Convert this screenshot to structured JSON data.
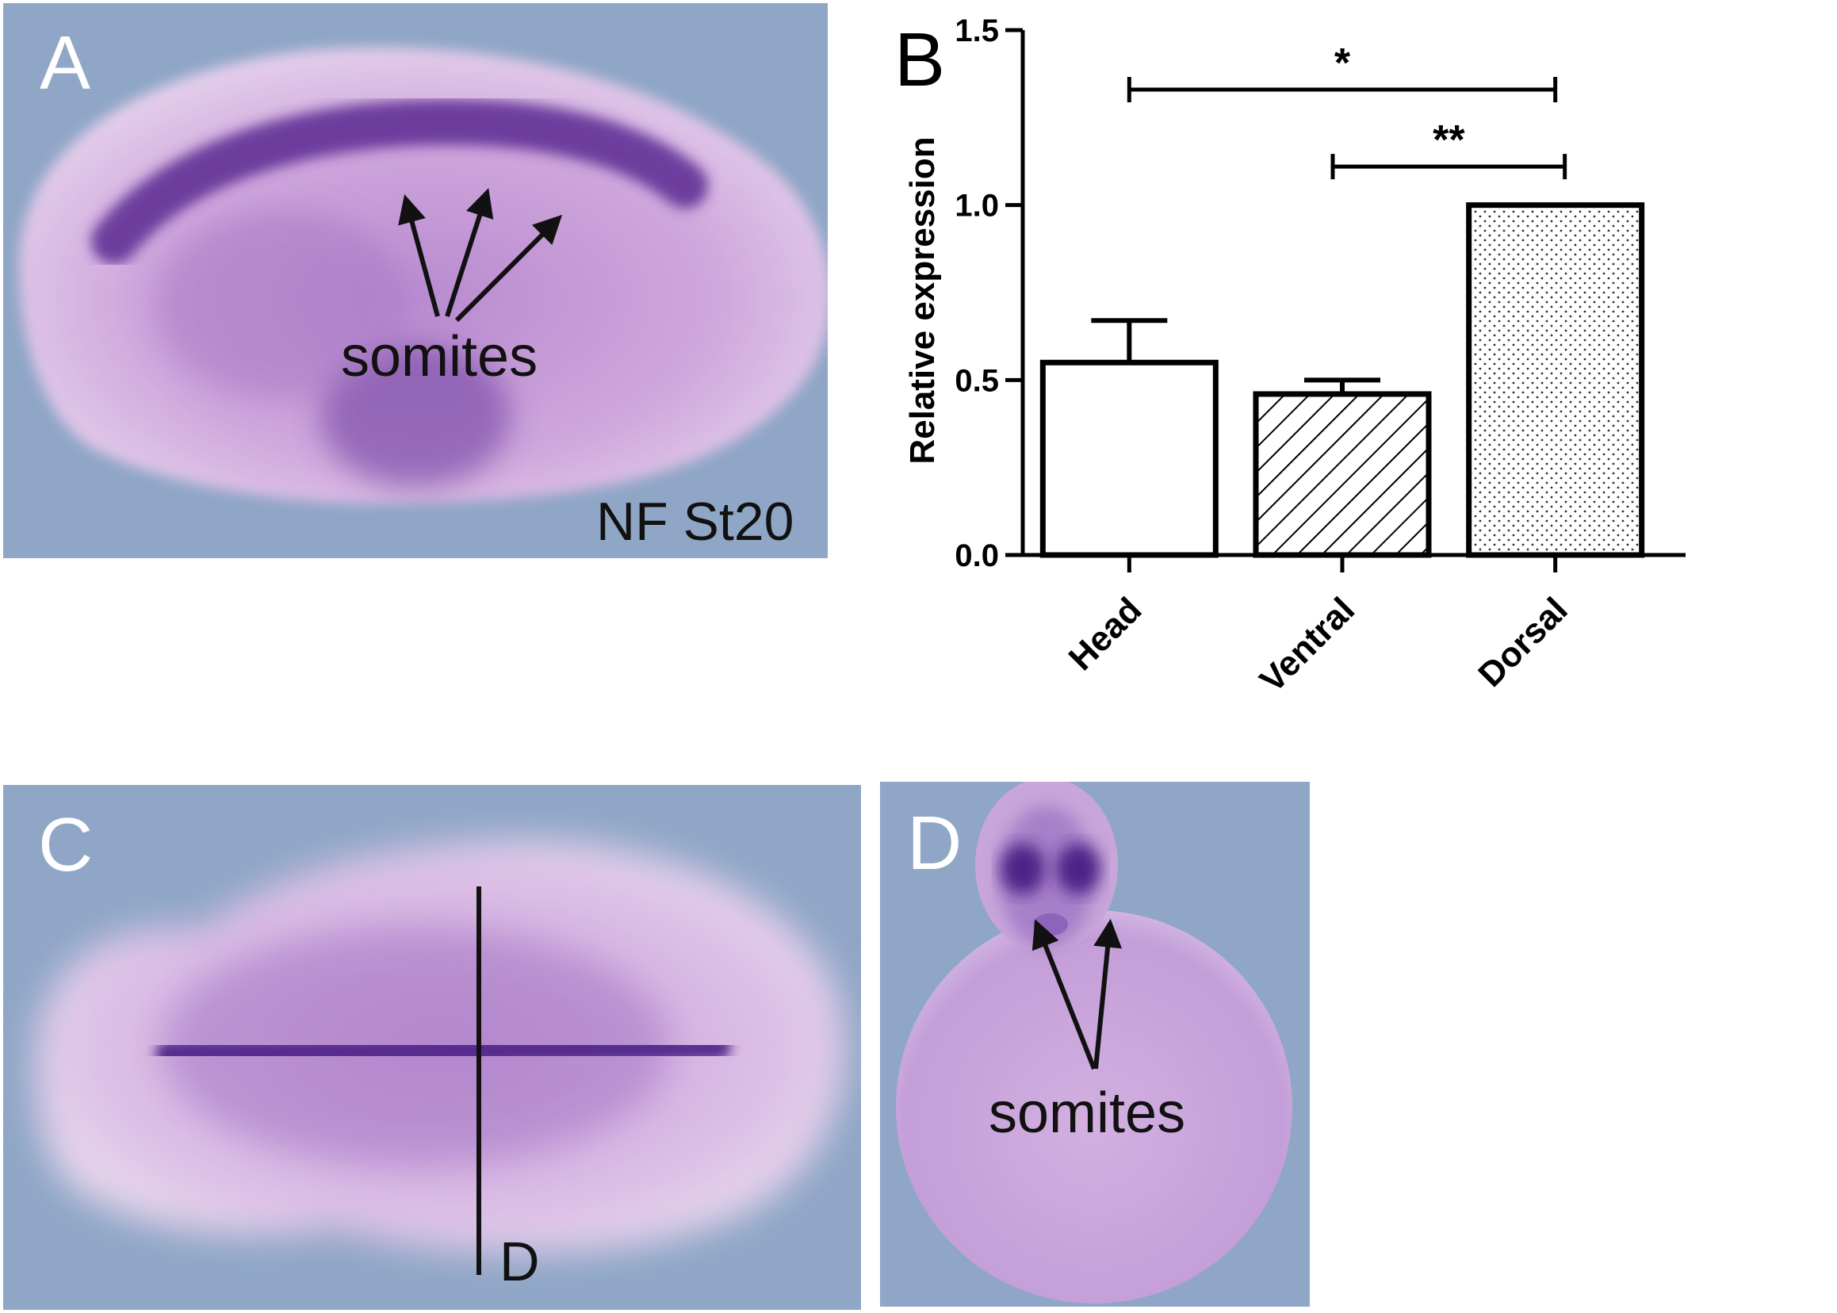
{
  "figure": {
    "panels": {
      "a": {
        "letter": "A",
        "label_somites": "somites",
        "label_stage": "NF St20",
        "embryo_view": "lateral"
      },
      "b": {
        "letter": "B"
      },
      "c": {
        "letter": "C",
        "section_label": "D",
        "embryo_view": "dorsal"
      },
      "d": {
        "letter": "D",
        "label_somites": "somites",
        "embryo_view": "transverse-section"
      }
    },
    "colors": {
      "photo_background": "#8fa6c6",
      "stain_purple": "#5c2a93",
      "embryo_pink": "#d9b4dc"
    }
  },
  "chart_data": {
    "type": "bar",
    "categories": [
      "Head",
      "Ventral",
      "Dorsal"
    ],
    "values": [
      0.55,
      0.46,
      1.0
    ],
    "errors": [
      0.12,
      0.04,
      0.0
    ],
    "fills": [
      "white",
      "diagonal-hatch",
      "dotted"
    ],
    "ylabel": "Relative expression",
    "xlabel": "",
    "ylim": [
      0,
      1.5
    ],
    "yticks": [
      0.0,
      0.5,
      1.0,
      1.5
    ],
    "ytick_labels": [
      "0.0",
      "0.5",
      "1.0",
      "1.5"
    ],
    "grid": false,
    "significance": [
      {
        "from": "Head",
        "to": "Dorsal",
        "label": "*"
      },
      {
        "from": "Ventral",
        "to": "Dorsal",
        "label": "**"
      }
    ]
  }
}
